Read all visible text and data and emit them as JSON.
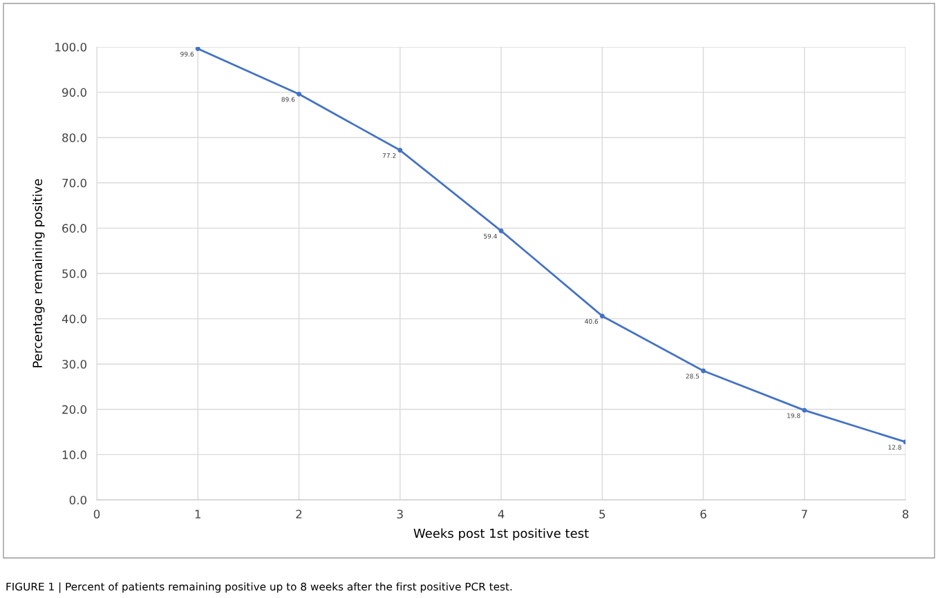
{
  "chart_data": {
    "type": "line",
    "xlabel": "Weeks post 1st positive test",
    "ylabel": "Percentage remaining positive",
    "annotations": [
      "FIGURE 1 | Percent of patients remaining positive up to 8 weeks after the first positive PCR test."
    ],
    "x": [
      1,
      2,
      3,
      4,
      5,
      6,
      7,
      8
    ],
    "series": [
      {
        "color": "#4472c4",
        "values": [
          99.6,
          89.6,
          77.2,
          59.4,
          40.6,
          28.5,
          19.8,
          12.8
        ]
      }
    ],
    "data_labels": true,
    "marker": "circle",
    "line_style": "solid",
    "grid": true,
    "legend": false,
    "xlim": [
      0,
      8
    ],
    "xticks": [
      0,
      1,
      2,
      3,
      4,
      5,
      6,
      7,
      8
    ],
    "ylim": [
      0,
      100
    ],
    "yticks": [
      {
        "value": 0,
        "label": "0.0"
      },
      {
        "value": 10,
        "label": "10.0"
      },
      {
        "value": 20,
        "label": "20.0"
      },
      {
        "value": 30,
        "label": "30.0"
      },
      {
        "value": 40,
        "label": "40.0"
      },
      {
        "value": 50,
        "label": "50.0"
      },
      {
        "value": 60,
        "label": "60.0"
      },
      {
        "value": 70,
        "label": "70.0"
      },
      {
        "value": 80,
        "label": "80.0"
      },
      {
        "value": 90,
        "label": "90.0"
      },
      {
        "value": 100,
        "label": "100.0"
      }
    ]
  }
}
